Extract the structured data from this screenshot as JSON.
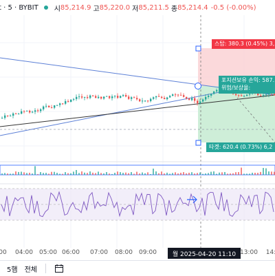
{
  "header": {
    "symbol_fragment": "t · 5 · BYBIT",
    "open_label": "시",
    "open_value": "85,214.9",
    "high_label": "고",
    "high_value": "85,220.0",
    "low_label": "저",
    "low_value": "85,211.5",
    "close_label": "종",
    "close_value": "85,214.4",
    "change": "-0.5 (-0.00%)"
  },
  "position_tool": {
    "stop_label": "스탑: 380.3 (0.45%) 3,",
    "target_label": "타겟: 620.4 (0.73%) 6,2",
    "pnl_label": "포지션보유 손익: 587.",
    "rr_label": "위험/보상율: "
  },
  "time_axis": {
    "ticks": [
      "00",
      "04:00",
      "05:00",
      "06:00",
      "07:00",
      "08:00",
      "09:00",
      "13:00",
      "14:"
    ],
    "crosshair": "월 2025-04-20   11:10"
  },
  "toolbar": {
    "timeframe": "5햄",
    "all_label": "전체"
  },
  "colors": {
    "up": "#26a69a",
    "down": "#ef5350",
    "stop_zone": "#fbd5d7",
    "target_zone": "#c9ecd4",
    "trendline": "#5b7fd6"
  }
}
